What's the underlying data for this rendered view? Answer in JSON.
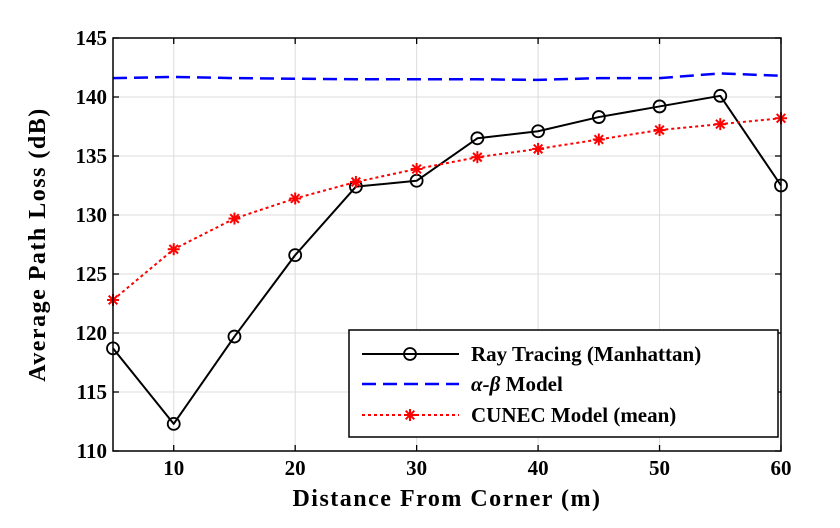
{
  "chart_data": {
    "type": "line",
    "xlabel": "Distance From Corner (m)",
    "ylabel": "Average Path Loss (dB)",
    "xlim": [
      5,
      60
    ],
    "ylim": [
      110,
      145
    ],
    "xticks": [
      10,
      20,
      30,
      40,
      50,
      60
    ],
    "yticks": [
      110,
      115,
      120,
      125,
      130,
      135,
      140,
      145
    ],
    "grid": true,
    "legend_position": "bottom-right",
    "series": [
      {
        "name": "Ray Tracing (Manhattan)",
        "color": "#000000",
        "style": "solid",
        "marker": "circle",
        "x": [
          5,
          10,
          15,
          20,
          25,
          30,
          35,
          40,
          45,
          50,
          55,
          60
        ],
        "y": [
          118.7,
          112.3,
          119.7,
          126.6,
          132.4,
          132.9,
          136.5,
          137.1,
          138.3,
          139.2,
          140.1,
          132.5
        ]
      },
      {
        "name_prefix": "α-",
        "name_symbol": "β",
        "name_suffix": " Model",
        "color": "#0000ff",
        "style": "dashed",
        "marker": "none",
        "x": [
          5,
          10,
          15,
          20,
          25,
          30,
          35,
          40,
          45,
          50,
          55,
          60
        ],
        "y": [
          141.6,
          141.7,
          141.6,
          141.55,
          141.5,
          141.5,
          141.5,
          141.45,
          141.6,
          141.6,
          142.0,
          141.8
        ]
      },
      {
        "name": "CUNEC Model (mean)",
        "color": "#ff0000",
        "style": "dotted",
        "marker": "asterisk",
        "x": [
          5,
          10,
          15,
          20,
          25,
          30,
          35,
          40,
          45,
          50,
          55,
          60
        ],
        "y": [
          122.8,
          127.1,
          129.7,
          131.4,
          132.8,
          133.9,
          134.9,
          135.6,
          136.4,
          137.2,
          137.7,
          138.2
        ]
      }
    ]
  }
}
